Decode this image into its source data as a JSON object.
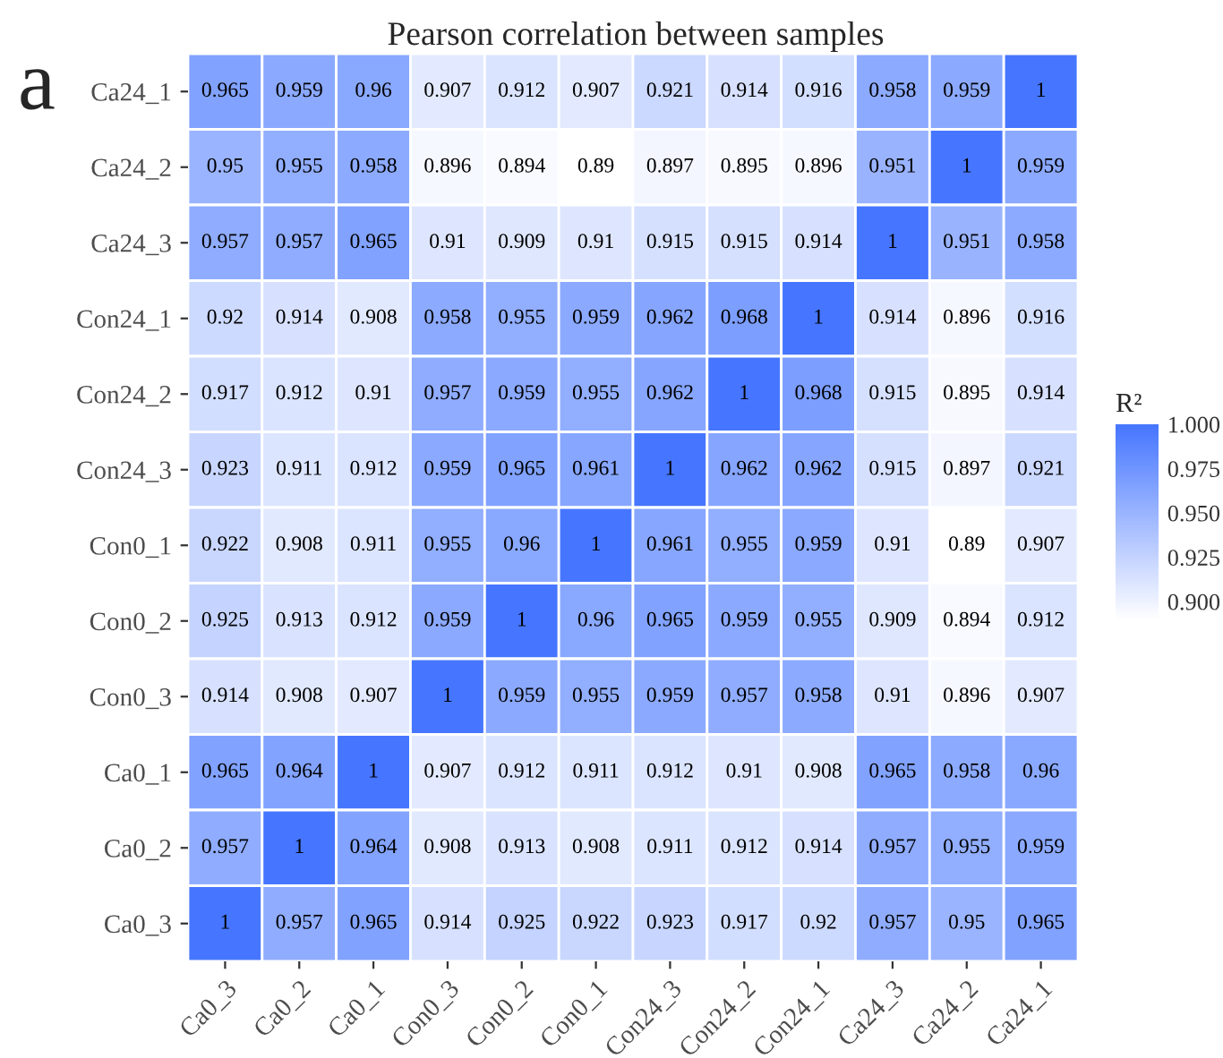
{
  "chart_data": {
    "type": "heatmap",
    "title": "Pearson correlation between samples",
    "legend_title": "R²",
    "annotations": [
      "a"
    ],
    "categories": [
      "Ca0_3",
      "Ca0_2",
      "Ca0_1",
      "Con0_3",
      "Con0_2",
      "Con0_1",
      "Con24_3",
      "Con24_2",
      "Con24_1",
      "Ca24_3",
      "Ca24_2",
      "Ca24_1"
    ],
    "y_categories": [
      "Ca24_1",
      "Ca24_2",
      "Ca24_3",
      "Con24_1",
      "Con24_2",
      "Con24_3",
      "Con0_1",
      "Con0_2",
      "Con0_3",
      "Ca0_1",
      "Ca0_2",
      "Ca0_3"
    ],
    "cells": [
      [
        0.965,
        0.959,
        0.96,
        0.907,
        0.912,
        0.907,
        0.921,
        0.914,
        0.916,
        0.958,
        0.959,
        1
      ],
      [
        0.95,
        0.955,
        0.958,
        0.896,
        0.894,
        0.89,
        0.897,
        0.895,
        0.896,
        0.951,
        1,
        0.959
      ],
      [
        0.957,
        0.957,
        0.965,
        0.91,
        0.909,
        0.91,
        0.915,
        0.915,
        0.914,
        1,
        0.951,
        0.958
      ],
      [
        0.92,
        0.914,
        0.908,
        0.958,
        0.955,
        0.959,
        0.962,
        0.968,
        1,
        0.914,
        0.896,
        0.916
      ],
      [
        0.917,
        0.912,
        0.91,
        0.957,
        0.959,
        0.955,
        0.962,
        1,
        0.968,
        0.915,
        0.895,
        0.914
      ],
      [
        0.923,
        0.911,
        0.912,
        0.959,
        0.965,
        0.961,
        1,
        0.962,
        0.962,
        0.915,
        0.897,
        0.921
      ],
      [
        0.922,
        0.908,
        0.911,
        0.955,
        0.96,
        1,
        0.961,
        0.955,
        0.959,
        0.91,
        0.89,
        0.907
      ],
      [
        0.925,
        0.913,
        0.912,
        0.959,
        1,
        0.96,
        0.965,
        0.959,
        0.955,
        0.909,
        0.894,
        0.912
      ],
      [
        0.914,
        0.908,
        0.907,
        1,
        0.959,
        0.955,
        0.959,
        0.957,
        0.958,
        0.91,
        0.896,
        0.907
      ],
      [
        0.965,
        0.964,
        1,
        0.907,
        0.912,
        0.911,
        0.912,
        0.91,
        0.908,
        0.965,
        0.958,
        0.96
      ],
      [
        0.957,
        1,
        0.964,
        0.908,
        0.913,
        0.908,
        0.911,
        0.912,
        0.914,
        0.957,
        0.955,
        0.959
      ],
      [
        1,
        0.957,
        0.965,
        0.914,
        0.925,
        0.922,
        0.923,
        0.917,
        0.92,
        0.957,
        0.95,
        0.965
      ]
    ],
    "data_labels": true,
    "clim": [
      0.89,
      1.0
    ],
    "cticks": [
      {
        "value": 0.9,
        "label": "0.900"
      },
      {
        "value": 0.925,
        "label": "0.925"
      },
      {
        "value": 0.95,
        "label": "0.950"
      },
      {
        "value": 0.975,
        "label": "0.975"
      },
      {
        "value": 1.0,
        "label": "1.000"
      }
    ]
  }
}
